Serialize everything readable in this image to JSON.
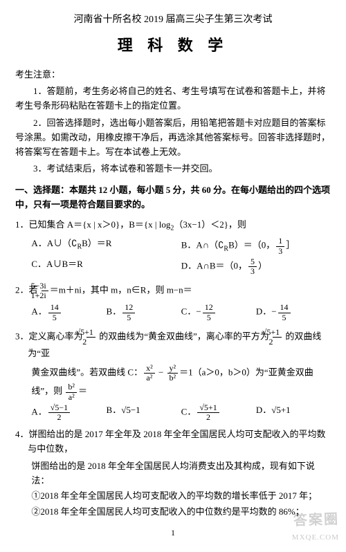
{
  "header": "河南省十所名校 2019 届高三尖子生第三次考试",
  "title": "理 科 数 学",
  "notice_label": "考生注意：",
  "notices": [
    "1．答题前，考生务必将自己的姓名、考生号填写在试卷和答题卡上，并将考生号条形码粘贴在答题卡上的指定位置。",
    "2．回答选择题时，选出每小题答案后，用铅笔把答题卡对应题目的答案标号涂黑。如需改动，用橡皮擦干净后，再选涂其他答案标号。回答非选择题时，将答案写在答题卡上。写在本试卷上无效。",
    "3．考试结束后，将本试卷和答题卡一并交回。"
  ],
  "section1_title": "一、选择题：本题共 12 小题，每小题 5 分，共 60 分。在每小题给出的四个选项中，只有一项是符合题目要求的。",
  "q1": {
    "stem_prefix": "1．已知集合 A＝{x | x＞0}，B＝{x | log",
    "stem_sub": "2",
    "stem_suffix": "（3x−1）＜2}，则",
    "A_pre": "A．A∪（∁",
    "A_sub": "R",
    "A_post": "B）＝R",
    "B_pre": "B．A∩（∁",
    "B_sub": "R",
    "B_post": "B）＝（0，",
    "B_frac_n": "1",
    "B_frac_d": "3",
    "B_tail": "］",
    "C": "C．A∪B＝R",
    "D_pre": "D．A∩B＝（0，",
    "D_frac_n": "5",
    "D_frac_d": "3",
    "D_tail": "）"
  },
  "q2": {
    "stem_pre": "2．若 ",
    "frac_n": "5−3i",
    "frac_d": "1+2i",
    "stem_post": "＝m＋ni，其中 m，n∈R，则 m−n＝",
    "A_n": "14",
    "A_d": "5",
    "A_pre": "A．",
    "B_n": "12",
    "B_d": "5",
    "B_pre": "B．",
    "C_n": "12",
    "C_d": "5",
    "C_pre": "C．−",
    "D_n": "14",
    "D_d": "5",
    "D_pre": "D．−"
  },
  "q3": {
    "stem_a": "3．定义离心率为 ",
    "e1_n": "√5+1",
    "e1_d": "2",
    "stem_b": " 的双曲线为“黄金双曲线”，离心率的平方为 ",
    "e2_n": "√5+1",
    "e2_d": "2",
    "stem_c": " 的双曲线为“亚",
    "line2_a": "黄金双曲线”。若双曲线 C：",
    "hx_n": "x²",
    "hx_d": "a²",
    "minus": " − ",
    "hy_n": "y²",
    "hy_d": "b²",
    "line2_b": "＝1（a＞0，b＞0）为“亚黄金双曲线”，则 ",
    "r_n": "b²",
    "r_d": "a²",
    "line2_c": "＝",
    "A_pre": "A．",
    "A_n": "√5−1",
    "A_d": "2",
    "B": "B．√5−1",
    "C_pre": "C．",
    "C_n": "√5+1",
    "C_d": "2",
    "D": "D．√5+1"
  },
  "q4": {
    "stem1": "4．饼图给出的是 2017 年全年及 2018 年全年全国居民人均可支配收入的平均数与中位数，",
    "stem2": "饼图给出的是 2018 年全年全国居民人均消费支出及其构成，现有如下说法：",
    "s1": "①2018 年全年全国居民人均可支配收入的平均数的增长率低于 2017 年；",
    "s2": "②2018 年全年全国居民人均可支配收入的中位数约是平均数的 86%；"
  },
  "page_number": "1",
  "watermark_text": "答案圈",
  "watermark_url": "MXQE.COM"
}
